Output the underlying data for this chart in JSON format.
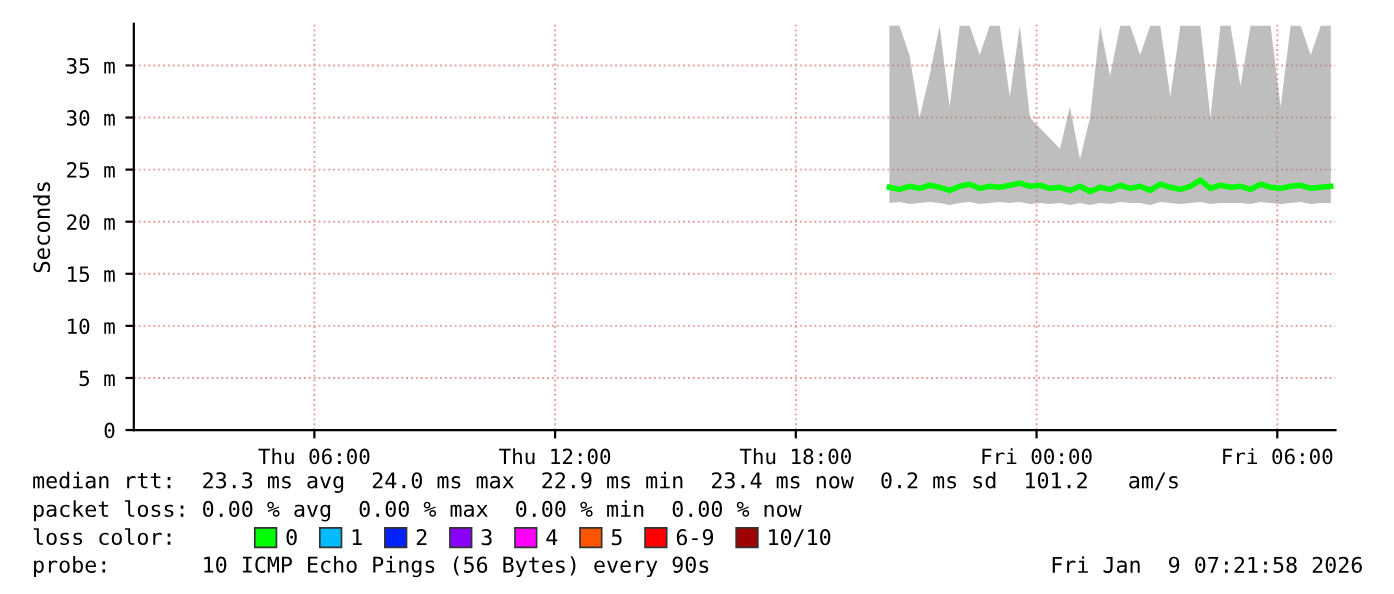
{
  "chart_data": {
    "type": "line",
    "ylabel": "Seconds",
    "x": [
      "2026-01-08T20:20",
      "2026-01-08T20:35",
      "2026-01-08T20:50",
      "2026-01-08T21:05",
      "2026-01-08T21:20",
      "2026-01-08T21:35",
      "2026-01-08T21:50",
      "2026-01-08T22:05",
      "2026-01-08T22:20",
      "2026-01-08T22:35",
      "2026-01-08T22:50",
      "2026-01-08T23:05",
      "2026-01-08T23:20",
      "2026-01-08T23:35",
      "2026-01-08T23:50",
      "2026-01-09T00:05",
      "2026-01-09T00:20",
      "2026-01-09T00:35",
      "2026-01-09T00:50",
      "2026-01-09T01:05",
      "2026-01-09T01:20",
      "2026-01-09T01:35",
      "2026-01-09T01:50",
      "2026-01-09T02:05",
      "2026-01-09T02:20",
      "2026-01-09T02:35",
      "2026-01-09T02:50",
      "2026-01-09T03:05",
      "2026-01-09T03:20",
      "2026-01-09T03:35",
      "2026-01-09T03:50",
      "2026-01-09T04:05",
      "2026-01-09T04:20",
      "2026-01-09T04:35",
      "2026-01-09T04:50",
      "2026-01-09T05:05",
      "2026-01-09T05:20",
      "2026-01-09T05:35",
      "2026-01-09T05:50",
      "2026-01-09T06:05",
      "2026-01-09T06:20",
      "2026-01-09T06:35",
      "2026-01-09T06:50",
      "2026-01-09T07:05",
      "2026-01-09T07:20"
    ],
    "series": [
      {
        "name": "0",
        "color": "#00ff00",
        "values": [
          23.3,
          23.1,
          23.4,
          23.2,
          23.5,
          23.3,
          23.0,
          23.4,
          23.6,
          23.2,
          23.4,
          23.3,
          23.5,
          23.7,
          23.4,
          23.5,
          23.2,
          23.3,
          23.0,
          23.4,
          22.9,
          23.3,
          23.1,
          23.5,
          23.2,
          23.4,
          23.0,
          23.6,
          23.3,
          23.1,
          23.4,
          24.0,
          23.2,
          23.5,
          23.3,
          23.4,
          23.1,
          23.6,
          23.3,
          23.2,
          23.4,
          23.5,
          23.2,
          23.3,
          23.4
        ],
        "lower": [
          21.8,
          21.9,
          21.7,
          21.8,
          21.9,
          21.8,
          21.6,
          21.8,
          21.9,
          21.7,
          21.8,
          21.9,
          21.8,
          21.9,
          21.7,
          21.8,
          21.7,
          21.8,
          21.6,
          21.8,
          21.6,
          21.8,
          21.7,
          21.9,
          21.8,
          21.8,
          21.6,
          21.9,
          21.8,
          21.7,
          21.8,
          21.9,
          21.7,
          21.8,
          21.8,
          21.8,
          21.7,
          21.9,
          21.8,
          21.7,
          21.8,
          21.9,
          21.7,
          21.8,
          21.8
        ],
        "upper": [
          38.8,
          38.8,
          36,
          30,
          34,
          38.8,
          31,
          38.8,
          38.8,
          36,
          38.8,
          38.8,
          32,
          38.8,
          30,
          29,
          28,
          27,
          31,
          26,
          30,
          38.8,
          34,
          38.8,
          38.8,
          36,
          38.8,
          38.8,
          32,
          38.8,
          38.8,
          38.8,
          30,
          38.8,
          38.8,
          33,
          38.8,
          38.8,
          38.8,
          31,
          38.8,
          38.8,
          36,
          38.8,
          38.8
        ]
      },
      {
        "name": "1",
        "color": "#00bbff",
        "values": [
          null,
          null,
          null,
          null,
          null,
          null,
          null,
          null,
          null,
          null,
          null,
          null,
          null,
          null,
          null,
          null,
          null,
          null,
          null,
          null,
          null,
          null,
          null,
          null,
          null,
          null,
          null,
          null,
          null,
          null,
          null,
          null,
          null,
          null,
          null,
          null,
          null,
          null,
          null,
          null,
          null,
          null,
          null,
          null,
          null
        ]
      },
      {
        "name": "2",
        "color": "#0022ff",
        "values": [
          null,
          null,
          null,
          null,
          null,
          null,
          null,
          null,
          null,
          null,
          null,
          null,
          null,
          null,
          null,
          null,
          null,
          null,
          null,
          null,
          null,
          null,
          null,
          null,
          null,
          null,
          null,
          null,
          null,
          null,
          null,
          null,
          null,
          null,
          null,
          null,
          null,
          null,
          null,
          null,
          null,
          null,
          null,
          null,
          null
        ]
      },
      {
        "name": "3",
        "color": "#8a00ff",
        "values": [
          null,
          null,
          null,
          null,
          null,
          null,
          null,
          null,
          null,
          null,
          null,
          null,
          null,
          null,
          null,
          null,
          null,
          null,
          null,
          null,
          null,
          null,
          null,
          null,
          null,
          null,
          null,
          null,
          null,
          null,
          null,
          null,
          null,
          null,
          null,
          null,
          null,
          null,
          null,
          null,
          null,
          null,
          null,
          null,
          null
        ]
      },
      {
        "name": "4",
        "color": "#ff00ff",
        "values": [
          null,
          null,
          null,
          null,
          null,
          null,
          null,
          null,
          null,
          null,
          null,
          null,
          null,
          null,
          null,
          null,
          null,
          null,
          null,
          null,
          null,
          null,
          null,
          null,
          null,
          null,
          null,
          null,
          null,
          null,
          null,
          null,
          null,
          null,
          null,
          null,
          null,
          null,
          null,
          null,
          null,
          null,
          null,
          null,
          null
        ]
      },
      {
        "name": "5",
        "color": "#ff5500",
        "values": [
          null,
          null,
          null,
          null,
          null,
          null,
          null,
          null,
          null,
          null,
          null,
          null,
          null,
          null,
          null,
          null,
          null,
          null,
          null,
          null,
          null,
          null,
          null,
          null,
          null,
          null,
          null,
          null,
          null,
          null,
          null,
          null,
          null,
          null,
          null,
          null,
          null,
          null,
          null,
          null,
          null,
          null,
          null,
          null,
          null
        ]
      },
      {
        "name": "6-9",
        "color": "#ff0000",
        "values": [
          null,
          null,
          null,
          null,
          null,
          null,
          null,
          null,
          null,
          null,
          null,
          null,
          null,
          null,
          null,
          null,
          null,
          null,
          null,
          null,
          null,
          null,
          null,
          null,
          null,
          null,
          null,
          null,
          null,
          null,
          null,
          null,
          null,
          null,
          null,
          null,
          null,
          null,
          null,
          null,
          null,
          null,
          null,
          null,
          null
        ]
      },
      {
        "name": "10/10",
        "color": "#a10000",
        "values": [
          null,
          null,
          null,
          null,
          null,
          null,
          null,
          null,
          null,
          null,
          null,
          null,
          null,
          null,
          null,
          null,
          null,
          null,
          null,
          null,
          null,
          null,
          null,
          null,
          null,
          null,
          null,
          null,
          null,
          null,
          null,
          null,
          null,
          null,
          null,
          null,
          null,
          null,
          null,
          null,
          null,
          null,
          null,
          null,
          null
        ]
      }
    ],
    "legend": "bottom",
    "legend_title": "loss color:",
    "xlim": [
      "2026-01-08T01:30",
      "2026-01-09T07:27"
    ],
    "xticks": [
      {
        "value": "2026-01-08T06:00",
        "label": "Thu 06:00"
      },
      {
        "value": "2026-01-08T12:00",
        "label": "Thu 12:00"
      },
      {
        "value": "2026-01-08T18:00",
        "label": "Thu 18:00"
      },
      {
        "value": "2026-01-09T00:00",
        "label": "Fri 00:00"
      },
      {
        "value": "2026-01-09T06:00",
        "label": "Fri 06:00"
      }
    ],
    "ylim": [
      0,
      39
    ],
    "yticks": [
      0,
      {
        "value": 5,
        "label": "5 m"
      },
      {
        "value": 10,
        "label": "10 m"
      },
      {
        "value": 15,
        "label": "15 m"
      },
      {
        "value": 20,
        "label": "20 m"
      },
      {
        "value": 25,
        "label": "25 m"
      },
      {
        "value": 30,
        "label": "30 m"
      },
      {
        "value": 35,
        "label": "35 m"
      }
    ],
    "grid": true,
    "annotations": [
      "median rtt:  23.3 ms avg  24.0 ms max  22.9 ms min  23.4 ms now  0.2 ms sd  101.2   am/s",
      "packet loss: 0.00 % avg  0.00 % max  0.00 % min  0.00 % now",
      "probe:       10 ICMP Echo Pings (56 Bytes) every 90s",
      "Fri Jan  9 07:21:58 2026"
    ]
  }
}
